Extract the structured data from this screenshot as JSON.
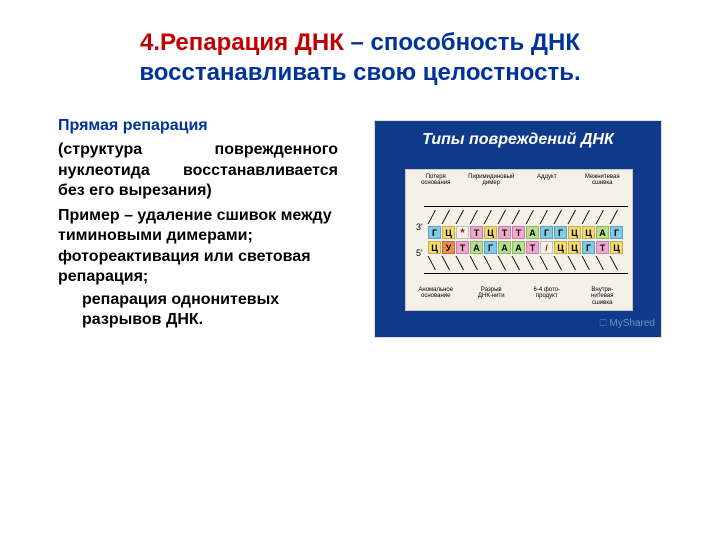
{
  "title": {
    "part1": "4.Репарация ДНК",
    "part2": " – способность ДНК восстанавливать свою целостность."
  },
  "left": {
    "subhead": "Прямая репарация",
    "para1": "(структура поврежденного нуклеотида восстанавливается без его вырезания)",
    "para2": "Пример – удаление сшивок между тиминовыми димерами; фотореактивация или световая репарация;",
    "para3": "репарация однонитевых разрывов ДНК."
  },
  "figure": {
    "title": "Типы повреждений ДНК",
    "watermark": "🗆 MyShared",
    "top_labels": [
      "Потеря\nоснования",
      "Пиримидиновый\nдимер",
      "Аддукт",
      "Межнитевая\nсшивка"
    ],
    "bottom_labels": [
      "Аномальное\nоснование",
      "Разрыв\nДНК-нити",
      "6-4 фото-\nпродукт",
      "Внутри-\nнитевая\nсшивка"
    ],
    "prime3": "3'",
    "prime5": "5'",
    "top_bases": [
      {
        "t": "Г",
        "c": "#7ecbe8"
      },
      {
        "t": "Ц",
        "c": "#f4d96b"
      },
      {
        "t": "*",
        "c": "star"
      },
      {
        "t": "Т",
        "c": "#f2a6d0"
      },
      {
        "t": "Ц",
        "c": "#f4d96b"
      },
      {
        "t": "Т",
        "c": "#f2a6d0"
      },
      {
        "t": "Т",
        "c": "#f2a6d0"
      },
      {
        "t": "А",
        "c": "#b7e08a"
      },
      {
        "t": "Г",
        "c": "#7ecbe8"
      },
      {
        "t": "Г",
        "c": "#7ecbe8"
      },
      {
        "t": "Ц",
        "c": "#f4d96b"
      },
      {
        "t": "Ц",
        "c": "#f4d96b"
      },
      {
        "t": "А",
        "c": "#b7e08a"
      },
      {
        "t": "Г",
        "c": "#7ecbe8"
      }
    ],
    "bot_bases": [
      {
        "t": "Ц",
        "c": "#f4d96b"
      },
      {
        "t": "У",
        "c": "#f08a4a"
      },
      {
        "t": "Т",
        "c": "#f2a6d0"
      },
      {
        "t": "А",
        "c": "#b7e08a"
      },
      {
        "t": "Г",
        "c": "#7ecbe8"
      },
      {
        "t": "А",
        "c": "#b7e08a"
      },
      {
        "t": "А",
        "c": "#b7e08a"
      },
      {
        "t": "Т",
        "c": "#f2a6d0"
      },
      {
        "t": "/",
        "c": "slash"
      },
      {
        "t": "Ц",
        "c": "#f4d96b"
      },
      {
        "t": "Ц",
        "c": "#f4d96b"
      },
      {
        "t": "Г",
        "c": "#7ecbe8"
      },
      {
        "t": "Т",
        "c": "#f2a6d0"
      },
      {
        "t": "Ц",
        "c": "#f4d96b"
      }
    ],
    "colors": {
      "panel_bg": "#0f3a8a",
      "dna_bg": "#f3f1e8",
      "title_color": "#ffffff"
    }
  }
}
